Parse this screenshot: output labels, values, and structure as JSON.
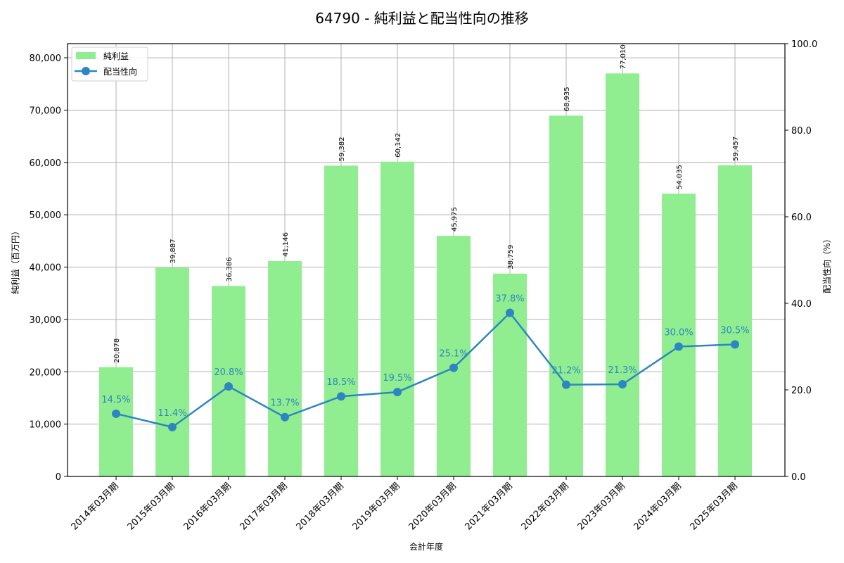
{
  "chart_data": {
    "type": "bar+line",
    "title": "64790 - 純利益と配当性向の推移",
    "xlabel": "会計年度",
    "ylabel": "純利益（百万円）",
    "ylabel_right": "配当性向（%）",
    "categories": [
      "2014年03月期",
      "2015年03月期",
      "2016年03月期",
      "2017年03月期",
      "2018年03月期",
      "2019年03月期",
      "2020年03月期",
      "2021年03月期",
      "2022年03月期",
      "2023年03月期",
      "2024年03月期",
      "2025年03月期"
    ],
    "series": [
      {
        "name": "純利益",
        "type": "bar",
        "axis": "left",
        "color": "#90ee90",
        "values": [
          20878,
          39887,
          36386,
          41146,
          59382,
          60142,
          45975,
          38759,
          68935,
          77010,
          54035,
          59457
        ],
        "labels": [
          "20,878",
          "39,887",
          "36,386",
          "41,146",
          "59,382",
          "60,142",
          "45,975",
          "38,759",
          "68,935",
          "77,010",
          "54,035",
          "59,457"
        ]
      },
      {
        "name": "配当性向",
        "type": "line",
        "axis": "right",
        "color": "#2e86c1",
        "values": [
          14.5,
          11.4,
          20.8,
          13.7,
          18.5,
          19.5,
          25.1,
          37.8,
          21.2,
          21.3,
          30.0,
          30.5
        ],
        "labels": [
          "14.5%",
          "11.4%",
          "20.8%",
          "13.7%",
          "18.5%",
          "19.5%",
          "25.1%",
          "37.8%",
          "21.2%",
          "21.3%",
          "30.0%",
          "30.5%"
        ]
      }
    ],
    "ylim": [
      0,
      82700
    ],
    "ylim_right": [
      0,
      100
    ],
    "yticks": [
      "0",
      "10,000",
      "20,000",
      "30,000",
      "40,000",
      "50,000",
      "60,000",
      "70,000",
      "80,000"
    ],
    "yticks_right": [
      "0.0",
      "20.0",
      "40.0",
      "60.0",
      "80.0",
      "100.0"
    ],
    "grid": true,
    "legend_position": "upper left"
  },
  "legend": {
    "items": [
      {
        "label": "純利益"
      },
      {
        "label": "配当性向"
      }
    ]
  }
}
